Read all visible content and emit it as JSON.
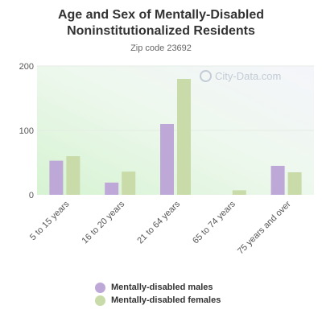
{
  "chart_data": {
    "type": "bar",
    "title": "Age and Sex of Mentally-Disabled Noninstitutionalized Residents",
    "subtitle": "Zip code 23692",
    "categories": [
      "5 to 15 years",
      "16 to 20 years",
      "21 to 64 years",
      "65 to 74 years",
      "75 years and over"
    ],
    "series": [
      {
        "name": "Mentally-disabled males",
        "color": "#bda8d8",
        "values": [
          53,
          19,
          110,
          0,
          45
        ]
      },
      {
        "name": "Mentally-disabled females",
        "color": "#c8dba8",
        "values": [
          60,
          36,
          180,
          7,
          35
        ]
      }
    ],
    "ylim": [
      0,
      200
    ],
    "yticks": [
      0,
      100,
      200
    ],
    "grid": true,
    "legend_position": "bottom"
  },
  "watermark": "City-Data.com"
}
